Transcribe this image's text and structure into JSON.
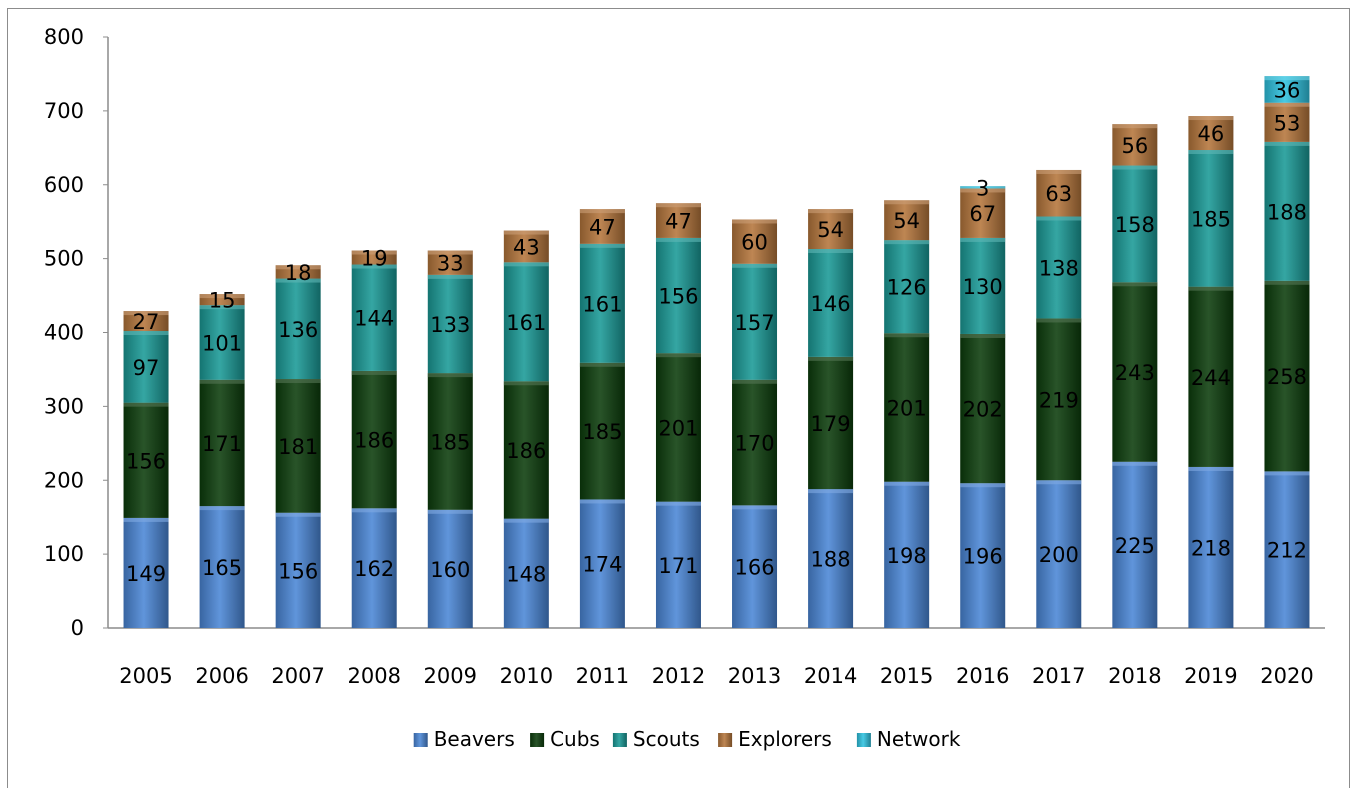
{
  "chart_data": {
    "type": "bar",
    "stacked": true,
    "categories": [
      "2005",
      "2006",
      "2007",
      "2008",
      "2009",
      "2010",
      "2011",
      "2012",
      "2013",
      "2014",
      "2015",
      "2016",
      "2017",
      "2018",
      "2019",
      "2020"
    ],
    "series": [
      {
        "name": "Beavers",
        "color": "#4a86d6",
        "values": [
          149,
          165,
          156,
          162,
          160,
          148,
          174,
          171,
          166,
          188,
          198,
          196,
          200,
          225,
          218,
          212
        ]
      },
      {
        "name": "Cubs",
        "color": "#0c3d0c",
        "values": [
          156,
          171,
          181,
          186,
          185,
          186,
          185,
          201,
          170,
          179,
          201,
          202,
          219,
          243,
          244,
          258
        ]
      },
      {
        "name": "Scouts",
        "color": "#1a9a96",
        "values": [
          97,
          101,
          136,
          144,
          133,
          161,
          161,
          156,
          157,
          146,
          126,
          130,
          138,
          158,
          185,
          188
        ]
      },
      {
        "name": "Explorers",
        "color": "#b5763c",
        "values": [
          27,
          15,
          18,
          19,
          33,
          43,
          47,
          47,
          60,
          54,
          54,
          67,
          63,
          56,
          46,
          53
        ]
      },
      {
        "name": "Network",
        "color": "#2fc3e0",
        "values": [
          null,
          null,
          null,
          null,
          null,
          null,
          null,
          null,
          null,
          null,
          null,
          3,
          null,
          null,
          null,
          36
        ]
      }
    ],
    "ylim": [
      0,
      800
    ],
    "yticks": [
      0,
      100,
      200,
      300,
      400,
      500,
      600,
      700,
      800
    ],
    "ytick_labels": [
      "0",
      "100",
      "200",
      "300",
      "400",
      "500",
      "600",
      "700",
      "800"
    ],
    "legend_position": "bottom",
    "grid": false
  }
}
